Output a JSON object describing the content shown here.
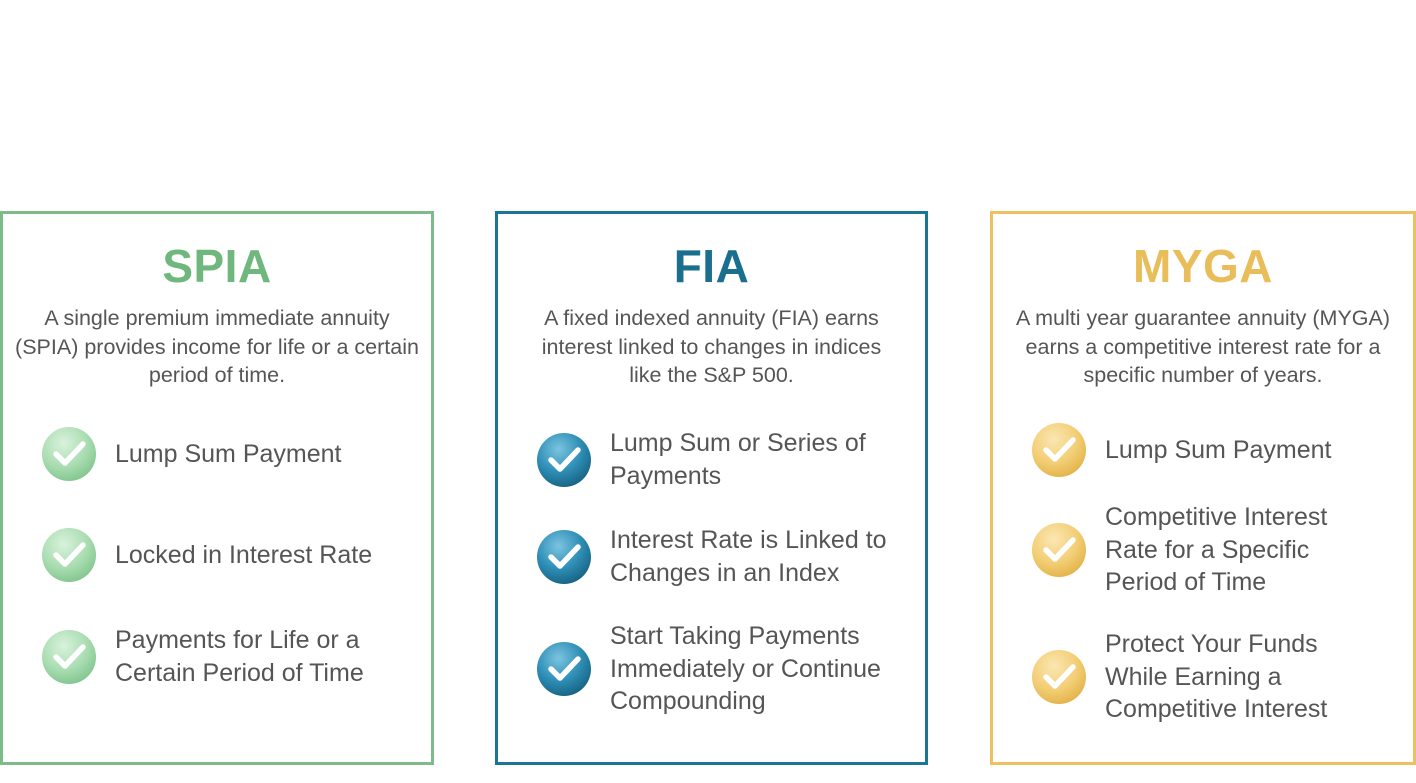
{
  "cards": [
    {
      "title": "SPIA",
      "description": "A single premium immediate annuity (SPIA) provides income for life or a certain period of time.",
      "accent_color": "#7dbb8a",
      "features": [
        {
          "label": "Lump Sum Payment",
          "icon": "checkmark-circle-icon"
        },
        {
          "label": "Locked in Interest Rate",
          "icon": "checkmark-circle-icon"
        },
        {
          "label": "Payments for Life or a Certain Period of Time",
          "icon": "checkmark-circle-icon"
        }
      ]
    },
    {
      "title": "FIA",
      "description": "A fixed indexed annuity (FIA) earns interest linked to changes in indices like the S&P 500.",
      "accent_color": "#1b7594",
      "features": [
        {
          "label": "Lump Sum or Series of Payments",
          "icon": "checkmark-circle-icon"
        },
        {
          "label": "Interest Rate is Linked to Changes in an Index",
          "icon": "checkmark-circle-icon"
        },
        {
          "label": "Start Taking Payments Immediately or Continue Compounding",
          "icon": "checkmark-circle-icon"
        }
      ]
    },
    {
      "title": "MYGA",
      "description": "A multi year guarantee annuity (MYGA) earns a competitive interest rate for a specific number of years.",
      "accent_color": "#ecc15e",
      "features": [
        {
          "label": "Lump Sum Payment",
          "icon": "checkmark-circle-icon"
        },
        {
          "label": "Competitive Interest Rate for a Specific Period of Time",
          "icon": "checkmark-circle-icon"
        },
        {
          "label": "Protect Your Funds While Earning a Competitive Interest",
          "icon": "checkmark-circle-icon"
        }
      ]
    }
  ]
}
